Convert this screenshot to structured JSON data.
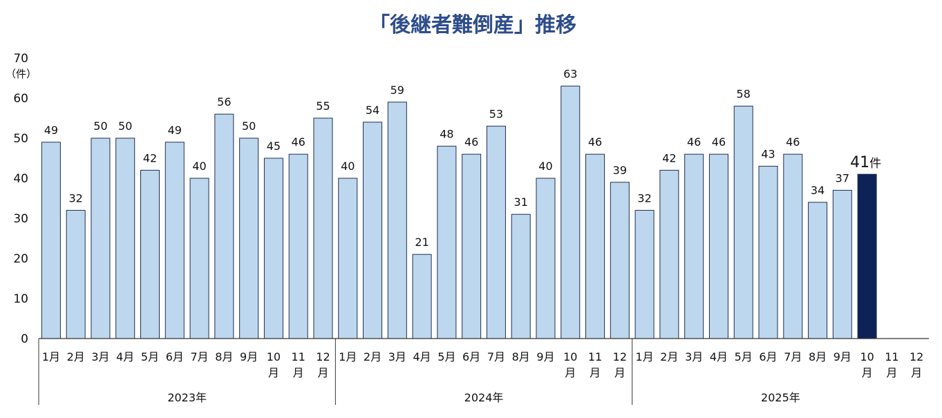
{
  "chart_data": {
    "type": "bar",
    "title": "「後継者難倒産」推移",
    "y_unit": "（件）",
    "ylim": [
      0,
      70
    ],
    "yticks": [
      0,
      10,
      20,
      30,
      40,
      50,
      60,
      70
    ],
    "grid": false,
    "highlight": {
      "label": "41",
      "unit": "件",
      "color": "#0d2257"
    },
    "bar_color": "#bdd7ee",
    "bar_edge_color": "#1f2d50",
    "groups": [
      {
        "year": "2023年",
        "months": [
          "1月",
          "2月",
          "3月",
          "4月",
          "5月",
          "6月",
          "7月",
          "8月",
          "9月",
          "10月",
          "11月",
          "12月"
        ],
        "values": [
          49,
          32,
          50,
          50,
          42,
          49,
          40,
          56,
          50,
          45,
          46,
          55
        ]
      },
      {
        "year": "2024年",
        "months": [
          "1月",
          "2月",
          "3月",
          "4月",
          "5月",
          "6月",
          "7月",
          "8月",
          "9月",
          "10月",
          "11月",
          "12月"
        ],
        "values": [
          40,
          54,
          59,
          21,
          48,
          46,
          53,
          31,
          40,
          63,
          46,
          39
        ]
      },
      {
        "year": "2025年",
        "months": [
          "1月",
          "2月",
          "3月",
          "4月",
          "5月",
          "6月",
          "7月",
          "8月",
          "9月",
          "10月",
          "11月",
          "12月"
        ],
        "values": [
          32,
          42,
          46,
          46,
          58,
          43,
          46,
          34,
          37,
          41,
          null,
          null
        ]
      }
    ]
  }
}
